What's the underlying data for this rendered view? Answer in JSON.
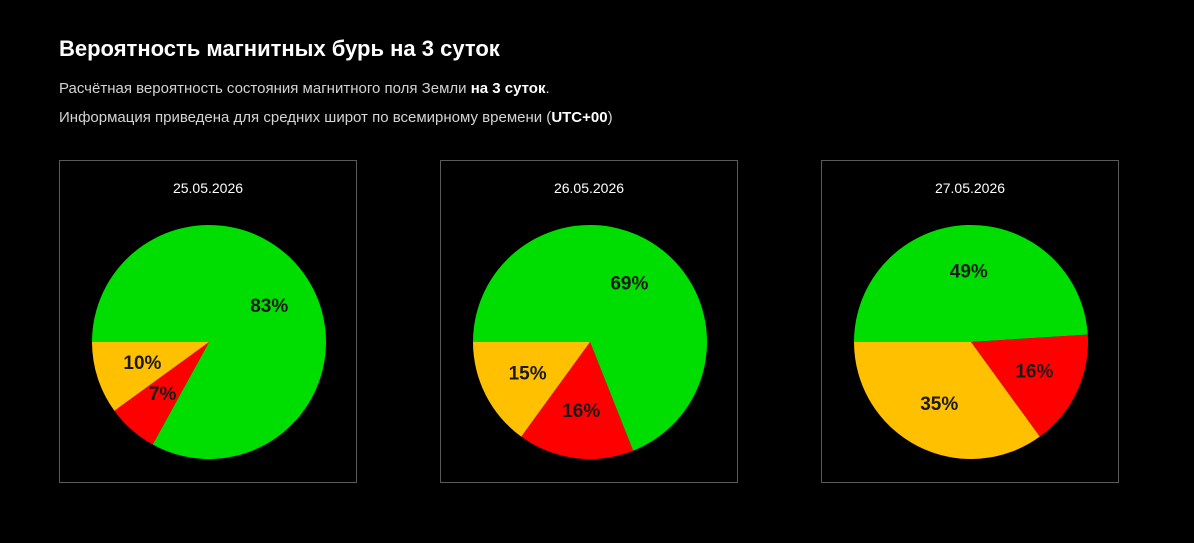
{
  "header": {
    "title": "Вероятность магнитных бурь на 3 суток",
    "desc_line1_prefix": "Расчётная вероятность состояния магнитного поля Земли ",
    "desc_line1_bold": "на 3 суток",
    "desc_line1_suffix": ".",
    "desc_line2_prefix": "Информация приведена для средних широт по всемирному времени (",
    "desc_line2_bold": "UTC+00",
    "desc_line2_suffix": ")"
  },
  "colors": {
    "green": "#00dd00",
    "red": "#ff0000",
    "yellow": "#ffc000"
  },
  "chart_data": [
    {
      "type": "pie",
      "title": "25.05.2026",
      "slices": [
        {
          "value": 83,
          "label": "83%",
          "color": "#00dd00"
        },
        {
          "value": 7,
          "label": "7%",
          "color": "#ff0000"
        },
        {
          "value": 10,
          "label": "10%",
          "color": "#ffc000"
        }
      ]
    },
    {
      "type": "pie",
      "title": "26.05.2026",
      "slices": [
        {
          "value": 69,
          "label": "69%",
          "color": "#00dd00"
        },
        {
          "value": 16,
          "label": "16%",
          "color": "#ff0000"
        },
        {
          "value": 15,
          "label": "15%",
          "color": "#ffc000"
        }
      ]
    },
    {
      "type": "pie",
      "title": "27.05.2026",
      "slices": [
        {
          "value": 49,
          "label": "49%",
          "color": "#00dd00"
        },
        {
          "value": 16,
          "label": "16%",
          "color": "#ff0000"
        },
        {
          "value": 35,
          "label": "35%",
          "color": "#ffc000"
        }
      ]
    }
  ]
}
